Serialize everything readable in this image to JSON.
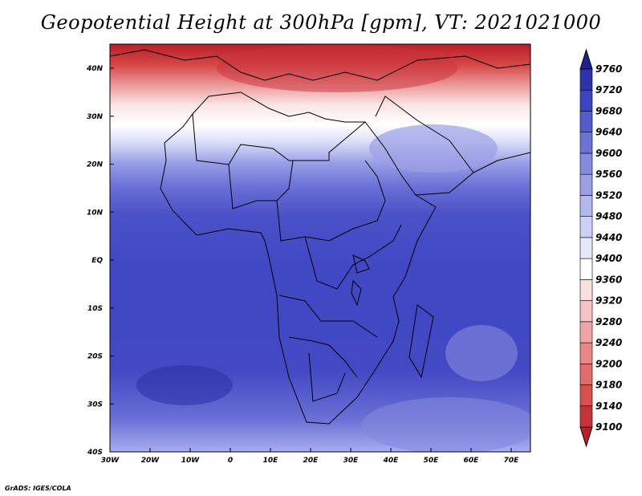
{
  "title": "Geopotential Height at 300hPa [gpm], VT: 2021021000",
  "credit": "GrADS: IGES/COLA",
  "map": {
    "x_ticks": [
      "30W",
      "20W",
      "10W",
      "0",
      "10E",
      "20E",
      "30E",
      "40E",
      "50E",
      "60E",
      "70E"
    ],
    "y_ticks": [
      "40N",
      "30N",
      "20N",
      "10N",
      "EQ",
      "10S",
      "20S",
      "30S",
      "40S"
    ]
  },
  "colorbar": {
    "levels": [
      9100,
      9140,
      9180,
      9200,
      9240,
      9280,
      9320,
      9360,
      9400,
      9440,
      9480,
      9520,
      9560,
      9600,
      9640,
      9680,
      9720,
      9760
    ],
    "colors": [
      "#b8202a",
      "#c8323a",
      "#d94f4f",
      "#e26b6b",
      "#e98787",
      "#f0a5a5",
      "#f5c3c3",
      "#fae0e0",
      "#ffffff",
      "#e5e8fa",
      "#ccd0f5",
      "#b3b8ee",
      "#9ba0e6",
      "#8489de",
      "#6c72d6",
      "#545bcd",
      "#3d44c2",
      "#2d33a8",
      "#1e238f"
    ]
  }
}
